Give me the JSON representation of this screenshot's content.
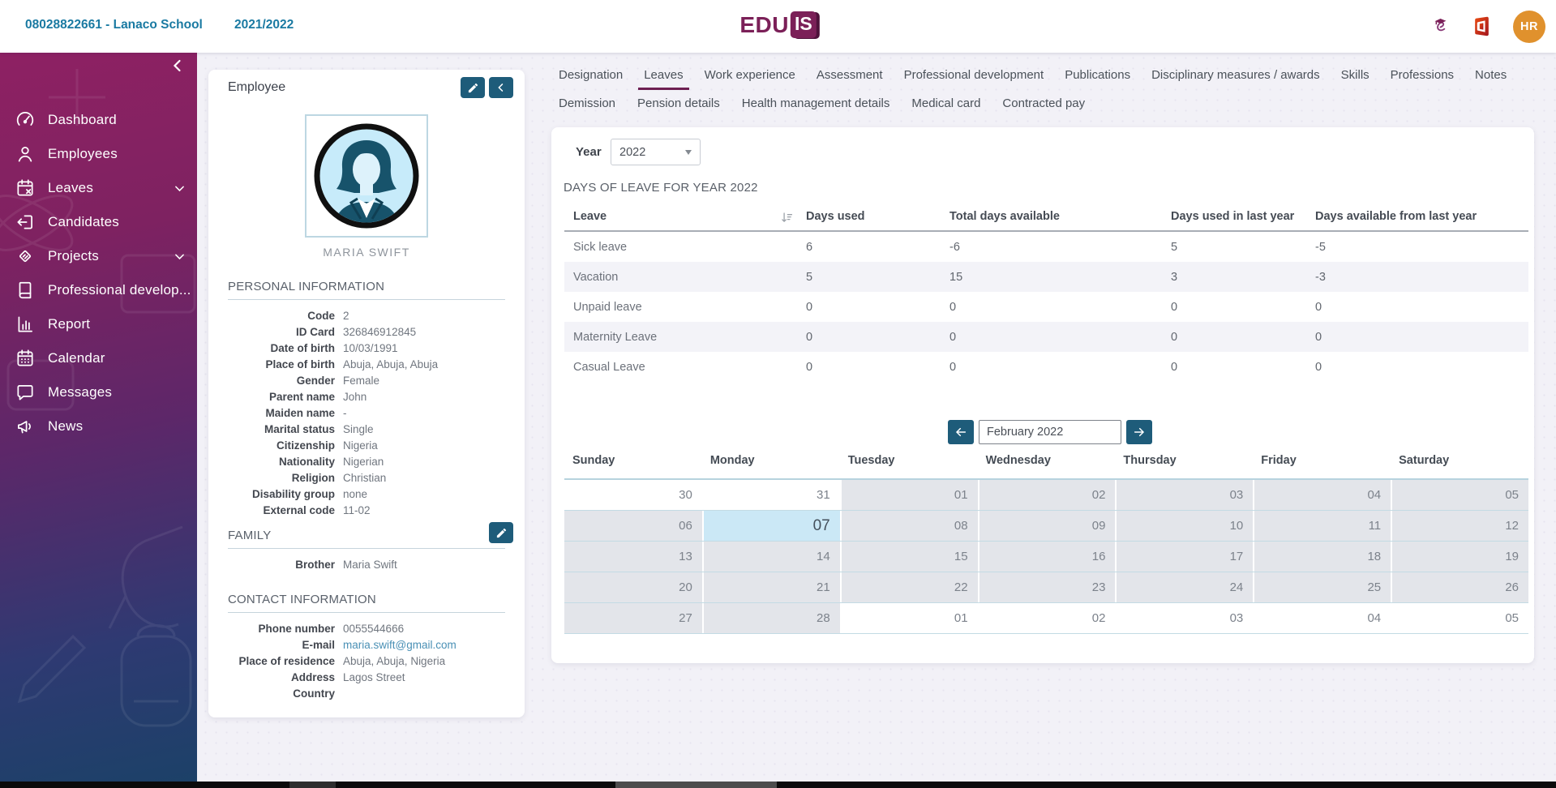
{
  "topbar": {
    "school": "08028822661 - Lanaco School",
    "school_year": "2021/2022",
    "logo": {
      "part1": "EDU",
      "part2": "IS"
    },
    "user_initials": "HR"
  },
  "sidebar": {
    "items": [
      {
        "label": "Dashboard",
        "icon": "dashboard",
        "expandable": false
      },
      {
        "label": "Employees",
        "icon": "employees",
        "expandable": false
      },
      {
        "label": "Leaves",
        "icon": "leaves",
        "expandable": true
      },
      {
        "label": "Candidates",
        "icon": "candidates",
        "expandable": false
      },
      {
        "label": "Projects",
        "icon": "projects",
        "expandable": true
      },
      {
        "label": "Professional develop...",
        "icon": "professional-development",
        "expandable": false
      },
      {
        "label": "Report",
        "icon": "report",
        "expandable": false
      },
      {
        "label": "Calendar",
        "icon": "calendar",
        "expandable": false
      },
      {
        "label": "Messages",
        "icon": "messages",
        "expandable": false
      },
      {
        "label": "News",
        "icon": "news",
        "expandable": false
      }
    ]
  },
  "employee_card": {
    "title": "Employee",
    "name": "MARIA SWIFT",
    "sections": {
      "personal": {
        "title": "PERSONAL INFORMATION",
        "fields": [
          {
            "label": "Code",
            "value": "2"
          },
          {
            "label": "ID Card",
            "value": "326846912845"
          },
          {
            "label": "Date of birth",
            "value": "10/03/1991"
          },
          {
            "label": "Place of birth",
            "value": "Abuja, Abuja, Abuja"
          },
          {
            "label": "Gender",
            "value": "Female"
          },
          {
            "label": "Parent name",
            "value": "John"
          },
          {
            "label": "Maiden name",
            "value": "-"
          },
          {
            "label": "Marital status",
            "value": "Single"
          },
          {
            "label": "Citizenship",
            "value": "Nigeria"
          },
          {
            "label": "Nationality",
            "value": "Nigerian"
          },
          {
            "label": "Religion",
            "value": "Christian"
          },
          {
            "label": "Disability group",
            "value": "none"
          },
          {
            "label": "External code",
            "value": "11-02"
          }
        ]
      },
      "family": {
        "title": "FAMILY",
        "fields": [
          {
            "label": "Brother",
            "value": "Maria Swift"
          }
        ]
      },
      "contact": {
        "title": "CONTACT INFORMATION",
        "fields": [
          {
            "label": "Phone number",
            "value": "0055544666"
          },
          {
            "label": "E-mail",
            "value": "maria.swift@gmail.com",
            "link": true
          },
          {
            "label": "Place of residence",
            "value": "Abuja, Abuja, Nigeria"
          },
          {
            "label": "Address",
            "value": "Lagos Street"
          },
          {
            "label": "Country",
            "value": ""
          }
        ]
      }
    }
  },
  "tabs": {
    "active": "Leaves",
    "row1": [
      "Designation",
      "Leaves",
      "Work experience",
      "Assessment",
      "Professional development",
      "Publications",
      "Disciplinary measures / awards",
      "Skills",
      "Professions",
      "Notes"
    ],
    "row2": [
      "Demission",
      "Pension details",
      "Health management details",
      "Medical card",
      "Contracted pay"
    ]
  },
  "leaves_panel": {
    "year_label": "Year",
    "year_value": "2022",
    "table_title": "DAYS OF LEAVE FOR YEAR 2022",
    "leave_table": {
      "columns": [
        "Leave",
        "Days used",
        "Total days available",
        "Days used in last year",
        "Days available from last year"
      ],
      "rows": [
        {
          "leave": "Sick leave",
          "values": [
            "6",
            "-6",
            "5",
            "-5"
          ]
        },
        {
          "leave": "Vacation",
          "values": [
            "5",
            "15",
            "3",
            "-3"
          ]
        },
        {
          "leave": "Unpaid leave",
          "values": [
            "0",
            "0",
            "0",
            "0"
          ]
        },
        {
          "leave": "Maternity Leave",
          "values": [
            "0",
            "0",
            "0",
            "0"
          ]
        },
        {
          "leave": "Casual Leave",
          "values": [
            "0",
            "0",
            "0",
            "0"
          ]
        }
      ]
    },
    "calendar": {
      "month_label": "February 2022",
      "day_headers": [
        "Sunday",
        "Monday",
        "Tuesday",
        "Wednesday",
        "Thursday",
        "Friday",
        "Saturday"
      ],
      "selected_day": "07",
      "weeks": [
        [
          {
            "d": "30",
            "out": true
          },
          {
            "d": "31",
            "out": true
          },
          {
            "d": "01"
          },
          {
            "d": "02"
          },
          {
            "d": "03"
          },
          {
            "d": "04"
          },
          {
            "d": "05"
          }
        ],
        [
          {
            "d": "06"
          },
          {
            "d": "07",
            "selected": true
          },
          {
            "d": "08"
          },
          {
            "d": "09"
          },
          {
            "d": "10"
          },
          {
            "d": "11"
          },
          {
            "d": "12"
          }
        ],
        [
          {
            "d": "13"
          },
          {
            "d": "14"
          },
          {
            "d": "15"
          },
          {
            "d": "16"
          },
          {
            "d": "17"
          },
          {
            "d": "18"
          },
          {
            "d": "19"
          }
        ],
        [
          {
            "d": "20"
          },
          {
            "d": "21"
          },
          {
            "d": "22"
          },
          {
            "d": "23"
          },
          {
            "d": "24"
          },
          {
            "d": "25"
          },
          {
            "d": "26"
          }
        ],
        [
          {
            "d": "27"
          },
          {
            "d": "28"
          },
          {
            "d": "01",
            "out": true
          },
          {
            "d": "02",
            "out": true
          },
          {
            "d": "03",
            "out": true
          },
          {
            "d": "04",
            "out": true
          },
          {
            "d": "05",
            "out": true
          }
        ]
      ]
    }
  },
  "colors": {
    "brand_purple": "#7b2058",
    "active_tab_underline": "#6d1f52",
    "button_teal": "#1e5c7a",
    "topbar_link_blue": "#1a7aa2",
    "selected_day_blue": "#cbe8f6",
    "calendar_in_month_gray": "#e3e5ea",
    "table_stripe": "#f3f3f8",
    "avatar_orange": "#e0912d",
    "email_link_blue": "#4a90b5",
    "sidebar_gradient_top": "#8e2163",
    "sidebar_gradient_bottom": "#1c4168"
  }
}
